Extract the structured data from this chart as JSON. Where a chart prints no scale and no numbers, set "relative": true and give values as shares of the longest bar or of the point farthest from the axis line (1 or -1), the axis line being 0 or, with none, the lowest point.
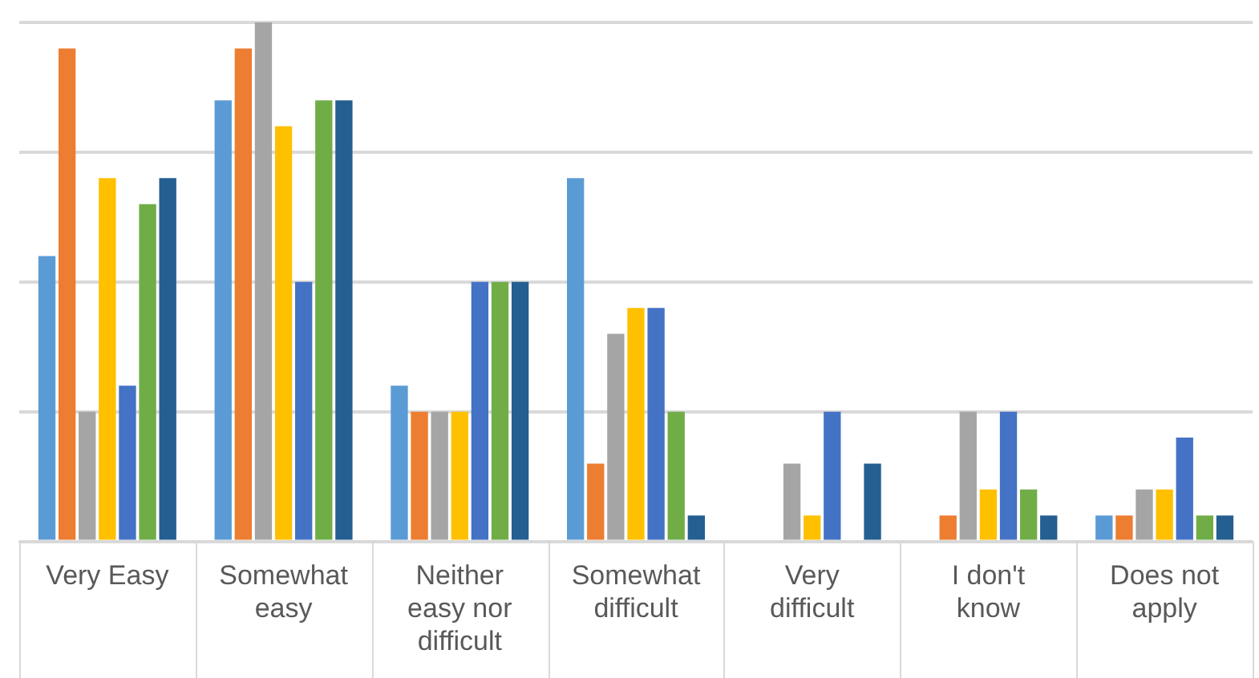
{
  "chart_data": {
    "type": "bar",
    "relative": true,
    "grid": "y",
    "legend": false,
    "categories": [
      "Very Easy",
      "Somewhat easy",
      "Neither easy nor difficult",
      "Somewhat difficult",
      "Very difficult",
      "I don't know",
      "Does not apply"
    ],
    "series": [
      {
        "color": "#5b9bd5",
        "values": [
          0.55,
          0.85,
          0.3,
          0.7,
          0,
          0,
          0.05
        ]
      },
      {
        "color": "#ed7d31",
        "values": [
          0.95,
          0.95,
          0.25,
          0.15,
          0,
          0.05,
          0.05
        ]
      },
      {
        "color": "#a5a5a5",
        "values": [
          0.25,
          1,
          0.25,
          0.4,
          0.15,
          0.25,
          0.1
        ]
      },
      {
        "color": "#ffc000",
        "values": [
          0.7,
          0.8,
          0.25,
          0.45,
          0.05,
          0.1,
          0.1
        ]
      },
      {
        "color": "#4472c4",
        "values": [
          0.3,
          0.5,
          0.5,
          0.45,
          0.25,
          0.25,
          0.2
        ]
      },
      {
        "color": "#70ad47",
        "values": [
          0.65,
          0.85,
          0.5,
          0.25,
          0,
          0.1,
          0.05
        ]
      },
      {
        "color": "#255e91",
        "values": [
          0.7,
          0.85,
          0.5,
          0.05,
          0.15,
          0.05,
          0.05
        ]
      }
    ]
  }
}
